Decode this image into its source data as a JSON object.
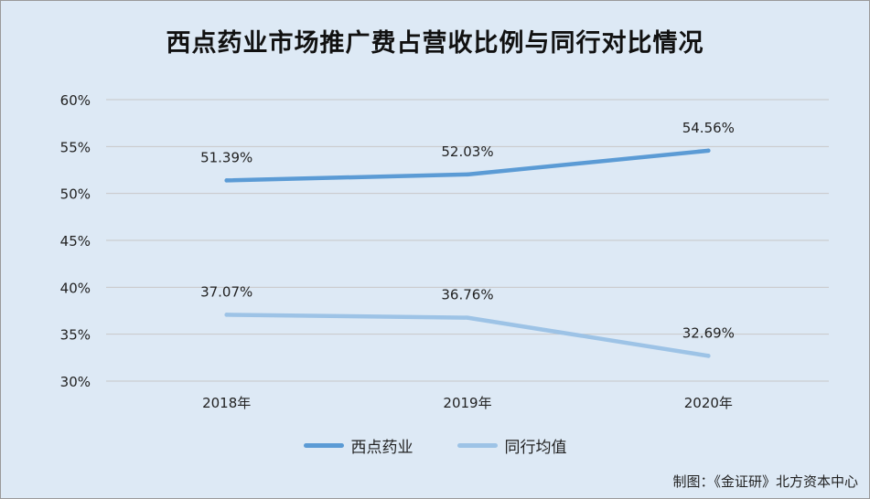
{
  "chart_data": {
    "type": "line",
    "title": "西点药业市场推广费占营收比例与同行对比情况",
    "categories": [
      "2018年",
      "2019年",
      "2020年"
    ],
    "series": [
      {
        "name": "西点药业",
        "values": [
          51.39,
          52.03,
          54.56
        ],
        "labels": [
          "51.39%",
          "52.03%",
          "54.56%"
        ],
        "color": "#5b9bd5"
      },
      {
        "name": "同行均值",
        "values": [
          37.07,
          36.76,
          32.69
        ],
        "labels": [
          "37.07%",
          "36.76%",
          "32.69%"
        ],
        "color": "#9dc3e6"
      }
    ],
    "ylim": [
      30,
      60
    ],
    "yticks": [
      60,
      55,
      50,
      45,
      40,
      35,
      30
    ],
    "ytick_labels": [
      "60%",
      "55%",
      "50%",
      "45%",
      "40%",
      "35%",
      "30%"
    ],
    "grid": true,
    "legend_position": "bottom",
    "background": "#dde9f5",
    "grid_color": "#c8c8c8"
  },
  "footer": {
    "credit": "制图：《金证研》北方资本中心"
  }
}
